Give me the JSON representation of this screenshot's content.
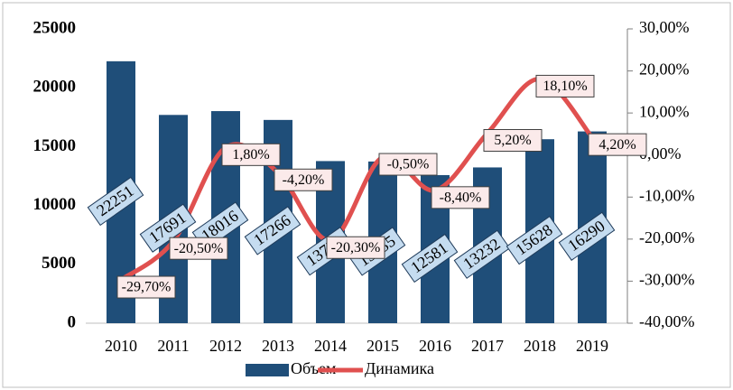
{
  "chart_data": {
    "type": "bar",
    "categories": [
      "2010",
      "2011",
      "2012",
      "2013",
      "2014",
      "2015",
      "2016",
      "2017",
      "2018",
      "2019"
    ],
    "series": [
      {
        "name": "Объем",
        "type": "bar",
        "color": "#1f4e79",
        "values": [
          22251,
          17691,
          18016,
          17266,
          13771,
          13735,
          12581,
          13232,
          15628,
          16290
        ]
      },
      {
        "name": "Динамика",
        "type": "line",
        "axis": "y2",
        "color": "#e0504f",
        "values": [
          -29.7,
          -20.5,
          1.8,
          -4.2,
          -20.3,
          -0.5,
          -8.4,
          5.2,
          18.1,
          4.2
        ],
        "value_labels": [
          "-29,70%",
          "-20,50%",
          "1,80%",
          "-4,20%",
          "-20,30%",
          "-0,50%",
          "-8,40%",
          "5,20%",
          "18,10%",
          "4,20%"
        ]
      }
    ],
    "ylim": [
      0,
      25000
    ],
    "yticks": [
      0,
      5000,
      10000,
      15000,
      20000,
      25000
    ],
    "y2lim": [
      -40,
      30
    ],
    "y2ticks": [
      {
        "value": -40,
        "label": "-40,00%"
      },
      {
        "value": -30,
        "label": "-30,00%"
      },
      {
        "value": -20,
        "label": "-20,00%"
      },
      {
        "value": -10,
        "label": "-10,00%"
      },
      {
        "value": 0,
        "label": "0,00%"
      },
      {
        "value": 10,
        "label": "10,00%"
      },
      {
        "value": 20,
        "label": "20,00%"
      },
      {
        "value": 30,
        "label": "30,00%"
      }
    ],
    "legend": "bottom"
  }
}
